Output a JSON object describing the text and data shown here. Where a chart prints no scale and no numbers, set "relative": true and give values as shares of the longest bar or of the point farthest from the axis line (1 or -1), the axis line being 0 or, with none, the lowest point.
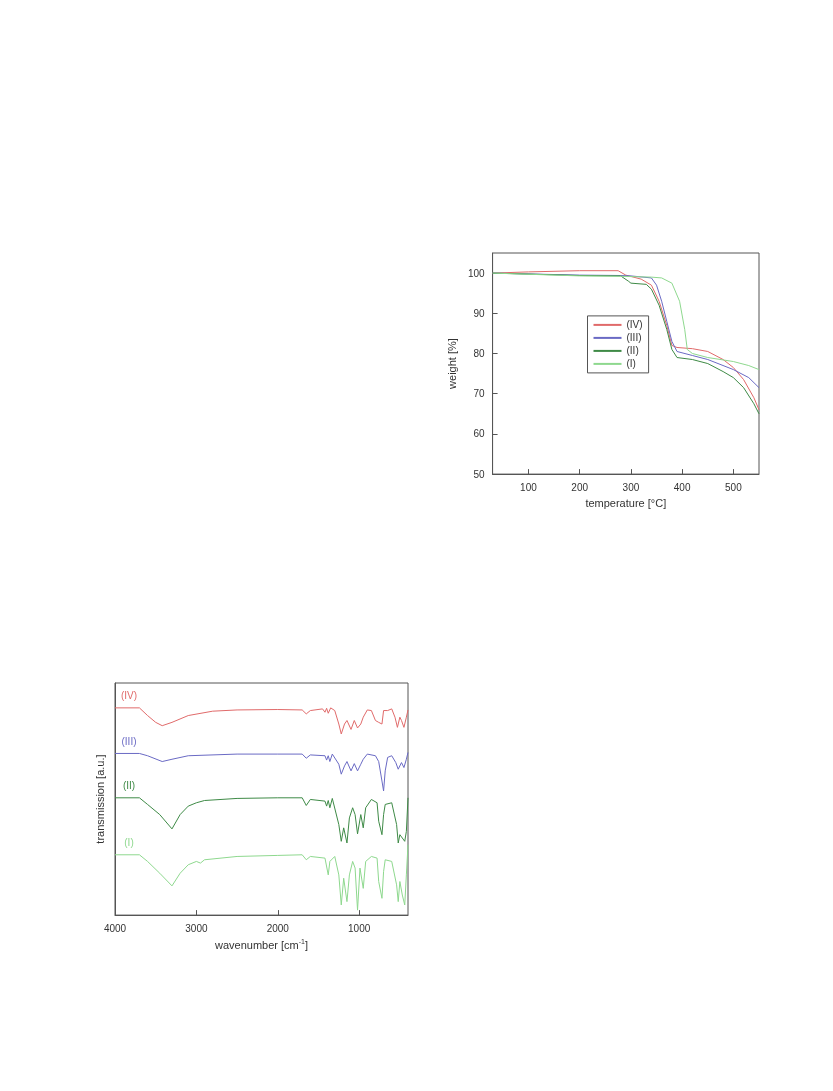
{
  "chart_data": [
    {
      "type": "line",
      "xlabel": "temperature [°C]",
      "ylabel": "weight [%]",
      "xlim": [
        30,
        550
      ],
      "ylim": [
        50,
        105
      ],
      "xticks": [
        100,
        200,
        300,
        400,
        500
      ],
      "yticks": [
        50,
        60,
        70,
        80,
        90,
        100
      ],
      "legend": "center",
      "series": [
        {
          "name": "(IV)",
          "color": "#e06a6a",
          "x": [
            30,
            100,
            200,
            275,
            290,
            320,
            340,
            355,
            370,
            380,
            390,
            420,
            450,
            480,
            500,
            520,
            540,
            550
          ],
          "values": [
            100,
            100.3,
            100.6,
            100.6,
            99.5,
            98.5,
            97,
            93,
            87,
            82,
            81.5,
            81.2,
            80.5,
            78.5,
            76.5,
            73.5,
            69,
            66
          ]
        },
        {
          "name": "(III)",
          "color": "#6a6ac4",
          "x": [
            30,
            200,
            280,
            300,
            340,
            350,
            360,
            370,
            380,
            390,
            420,
            450,
            500,
            530,
            550
          ],
          "values": [
            100,
            99.5,
            99.4,
            99.3,
            98.8,
            97,
            93,
            88,
            83,
            80.5,
            79.5,
            78.5,
            76,
            74,
            71.5
          ]
        },
        {
          "name": "(II)",
          "color": "#3e8a46",
          "x": [
            30,
            200,
            280,
            295,
            300,
            330,
            340,
            355,
            370,
            380,
            390,
            420,
            450,
            480,
            500,
            520,
            540,
            550
          ],
          "values": [
            100,
            99.4,
            99.3,
            98,
            97.5,
            97.2,
            96,
            92,
            86,
            81,
            79,
            78.5,
            77.5,
            75.5,
            74,
            71.5,
            67.5,
            65
          ]
        },
        {
          "name": "(I)",
          "color": "#8ed88e",
          "x": [
            30,
            200,
            280,
            340,
            360,
            380,
            395,
            405,
            410,
            420,
            450,
            500,
            530,
            550
          ],
          "values": [
            100,
            99.3,
            99.2,
            99,
            98.8,
            97.5,
            93,
            86,
            81,
            80,
            79,
            78,
            77,
            76
          ]
        }
      ]
    },
    {
      "type": "line",
      "xlabel": "wavenumber [cm$^{-1}$]",
      "ylabel": "transmission [a.u.]",
      "xlim": [
        4000,
        400
      ],
      "xticks": [
        4000,
        3000,
        2000,
        1000
      ],
      "relative": true,
      "series": [
        {
          "name": "(IV)",
          "color": "#e06a6a",
          "x": [
            4000,
            3700,
            3600,
            3500,
            3420,
            3300,
            3100,
            2800,
            2500,
            2000,
            1700,
            1650,
            1600,
            1450,
            1420,
            1400,
            1380,
            1350,
            1300,
            1250,
            1220,
            1180,
            1150,
            1100,
            1060,
            1020,
            980,
            950,
            900,
            850,
            800,
            760,
            720,
            700,
            650,
            600,
            560,
            530,
            500,
            480,
            450,
            420,
            400
          ],
          "values": [
            1.0,
            1.0,
            0.963,
            0.93,
            0.914,
            0.93,
            0.963,
            0.984,
            0.99,
            0.992,
            0.99,
            0.971,
            0.987,
            0.995,
            0.979,
            0.998,
            0.974,
            1.0,
            0.987,
            0.922,
            0.874,
            0.922,
            0.939,
            0.896,
            0.939,
            0.903,
            0.922,
            0.955,
            0.99,
            0.987,
            0.939,
            0.93,
            0.922,
            0.987,
            0.987,
            0.995,
            0.955,
            0.906,
            0.955,
            0.939,
            0.906,
            0.955,
            0.99
          ]
        },
        {
          "name": "(III)",
          "color": "#6a6ac4",
          "x": [
            4000,
            3700,
            3600,
            3420,
            3300,
            3100,
            2500,
            2000,
            1700,
            1650,
            1600,
            1420,
            1400,
            1380,
            1360,
            1330,
            1250,
            1220,
            1180,
            1150,
            1100,
            1060,
            1020,
            980,
            950,
            900,
            800,
            760,
            720,
            700,
            680,
            650,
            600,
            550,
            520,
            480,
            450,
            420,
            400
          ],
          "values": [
            0.78,
            0.78,
            0.769,
            0.741,
            0.752,
            0.769,
            0.777,
            0.777,
            0.777,
            0.757,
            0.773,
            0.769,
            0.748,
            0.769,
            0.741,
            0.777,
            0.728,
            0.68,
            0.72,
            0.741,
            0.696,
            0.731,
            0.696,
            0.728,
            0.752,
            0.777,
            0.769,
            0.741,
            0.647,
            0.599,
            0.696,
            0.761,
            0.769,
            0.736,
            0.704,
            0.736,
            0.712,
            0.752,
            0.785
          ]
        },
        {
          "name": "(II)",
          "color": "#3e8a46",
          "x": [
            4000,
            3700,
            3600,
            3450,
            3300,
            3200,
            3100,
            3000,
            2900,
            2500,
            2000,
            1700,
            1650,
            1600,
            1420,
            1400,
            1380,
            1360,
            1330,
            1250,
            1220,
            1190,
            1150,
            1120,
            1080,
            1050,
            1020,
            980,
            950,
            920,
            850,
            780,
            760,
            720,
            700,
            680,
            600,
            540,
            520,
            500,
            470,
            440,
            420,
            400
          ],
          "values": [
            0.566,
            0.566,
            0.534,
            0.485,
            0.416,
            0.485,
            0.526,
            0.542,
            0.553,
            0.563,
            0.566,
            0.566,
            0.529,
            0.558,
            0.55,
            0.526,
            0.553,
            0.518,
            0.563,
            0.437,
            0.356,
            0.421,
            0.348,
            0.469,
            0.518,
            0.485,
            0.392,
            0.485,
            0.421,
            0.518,
            0.558,
            0.542,
            0.453,
            0.388,
            0.485,
            0.534,
            0.542,
            0.437,
            0.348,
            0.388,
            0.372,
            0.356,
            0.404,
            0.566
          ]
        },
        {
          "name": "(I)",
          "color": "#8ed88e",
          "x": [
            4000,
            3700,
            3600,
            3450,
            3300,
            3200,
            3100,
            3000,
            2950,
            2900,
            2500,
            2000,
            1700,
            1650,
            1600,
            1420,
            1380,
            1360,
            1300,
            1250,
            1220,
            1190,
            1150,
            1120,
            1080,
            1050,
            1020,
            990,
            950,
            920,
            850,
            780,
            760,
            720,
            700,
            680,
            600,
            540,
            520,
            500,
            470,
            440,
            420,
            400
          ],
          "values": [
            0.291,
            0.291,
            0.259,
            0.202,
            0.141,
            0.202,
            0.243,
            0.259,
            0.251,
            0.267,
            0.283,
            0.288,
            0.291,
            0.267,
            0.283,
            0.275,
            0.194,
            0.259,
            0.283,
            0.194,
            0.049,
            0.178,
            0.065,
            0.194,
            0.259,
            0.227,
            0.024,
            0.227,
            0.129,
            0.259,
            0.283,
            0.275,
            0.162,
            0.081,
            0.21,
            0.267,
            0.259,
            0.146,
            0.065,
            0.162,
            0.097,
            0.049,
            0.194,
            0.34
          ]
        }
      ]
    }
  ]
}
